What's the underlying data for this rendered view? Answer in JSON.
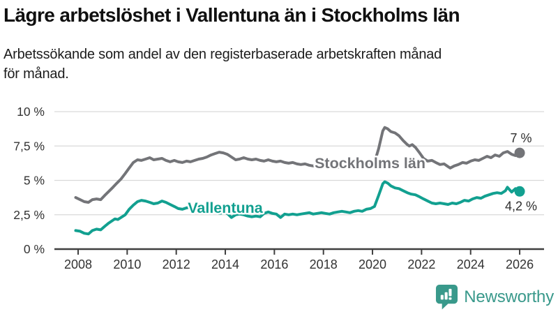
{
  "header": {
    "title": "Lägre arbetslöshet i Vallentuna än i Stockholms län",
    "subtitle_lines": [
      "Arbetssökande som andel av den registerbaserade arbetskraften månad",
      "för månad."
    ]
  },
  "footer": {
    "brand": "Newsworthy",
    "logo_icon": "bar-chart-speech-bubble-icon"
  },
  "colors": {
    "stockholm_line": "#737478",
    "vallentuna_line": "#12a090",
    "grid": "#d9d9d9",
    "axis": "#3f3f3f",
    "tick_text": "#333333",
    "end_label_text": "#2e2e2e",
    "brand_teal": "#39998b",
    "background": "#ffffff"
  },
  "chart_data": {
    "type": "line",
    "title": "Lägre arbetslöshet i Vallentuna än i Stockholms län",
    "xlabel": "",
    "ylabel": "",
    "grid": "horizontal",
    "legend_position": "inline-labels",
    "x_range": [
      2007.85,
      2026.0
    ],
    "ylim": [
      0,
      10
    ],
    "y_ticks": [
      {
        "value": 0,
        "label": "0 %"
      },
      {
        "value": 2.5,
        "label": "2,5 %"
      },
      {
        "value": 5,
        "label": "5 %"
      },
      {
        "value": 7.5,
        "label": "7,5 %"
      },
      {
        "value": 10,
        "label": "10 %"
      }
    ],
    "x_ticks": [
      {
        "value": 2008,
        "label": "2008"
      },
      {
        "value": 2010,
        "label": "2010"
      },
      {
        "value": 2012,
        "label": "2012"
      },
      {
        "value": 2014,
        "label": "2014"
      },
      {
        "value": 2016,
        "label": "2016"
      },
      {
        "value": 2018,
        "label": "2018"
      },
      {
        "value": 2020,
        "label": "2020"
      },
      {
        "value": 2022,
        "label": "2022"
      },
      {
        "value": 2024,
        "label": "2024"
      },
      {
        "value": 2026,
        "label": "2026"
      }
    ],
    "series": [
      {
        "name": "Stockholms län",
        "color": "#737478",
        "end_label": "7 %",
        "end_label_side": "above",
        "name_label_at": {
          "x": 2019.9,
          "y": 6.25
        },
        "points": [
          [
            2007.9,
            3.75
          ],
          [
            2008.08,
            3.6
          ],
          [
            2008.25,
            3.45
          ],
          [
            2008.42,
            3.4
          ],
          [
            2008.58,
            3.6
          ],
          [
            2008.75,
            3.65
          ],
          [
            2008.92,
            3.6
          ],
          [
            2009.08,
            3.9
          ],
          [
            2009.25,
            4.2
          ],
          [
            2009.42,
            4.5
          ],
          [
            2009.58,
            4.8
          ],
          [
            2009.75,
            5.1
          ],
          [
            2009.92,
            5.5
          ],
          [
            2010.08,
            5.9
          ],
          [
            2010.25,
            6.3
          ],
          [
            2010.42,
            6.5
          ],
          [
            2010.58,
            6.45
          ],
          [
            2010.75,
            6.55
          ],
          [
            2010.92,
            6.65
          ],
          [
            2011.08,
            6.5
          ],
          [
            2011.25,
            6.55
          ],
          [
            2011.42,
            6.6
          ],
          [
            2011.58,
            6.45
          ],
          [
            2011.75,
            6.35
          ],
          [
            2011.92,
            6.45
          ],
          [
            2012.08,
            6.35
          ],
          [
            2012.25,
            6.3
          ],
          [
            2012.42,
            6.4
          ],
          [
            2012.58,
            6.35
          ],
          [
            2012.75,
            6.45
          ],
          [
            2012.92,
            6.55
          ],
          [
            2013.08,
            6.6
          ],
          [
            2013.25,
            6.7
          ],
          [
            2013.42,
            6.85
          ],
          [
            2013.58,
            6.95
          ],
          [
            2013.75,
            7.05
          ],
          [
            2013.92,
            7.0
          ],
          [
            2014.08,
            6.9
          ],
          [
            2014.25,
            6.7
          ],
          [
            2014.42,
            6.5
          ],
          [
            2014.58,
            6.55
          ],
          [
            2014.75,
            6.65
          ],
          [
            2014.92,
            6.55
          ],
          [
            2015.08,
            6.5
          ],
          [
            2015.25,
            6.55
          ],
          [
            2015.42,
            6.45
          ],
          [
            2015.58,
            6.4
          ],
          [
            2015.75,
            6.5
          ],
          [
            2015.92,
            6.4
          ],
          [
            2016.08,
            6.35
          ],
          [
            2016.25,
            6.4
          ],
          [
            2016.42,
            6.3
          ],
          [
            2016.58,
            6.25
          ],
          [
            2016.75,
            6.3
          ],
          [
            2016.92,
            6.2
          ],
          [
            2017.08,
            6.15
          ],
          [
            2017.25,
            6.2
          ],
          [
            2017.42,
            6.1
          ],
          [
            2017.58,
            6.05
          ],
          [
            2017.75,
            6.1
          ],
          [
            2017.92,
            6.0
          ],
          [
            2018.08,
            6.05
          ],
          [
            2018.25,
            6.1
          ],
          [
            2018.42,
            6.0
          ],
          [
            2018.58,
            5.95
          ],
          [
            2018.75,
            6.05
          ],
          [
            2018.92,
            6.1
          ],
          [
            2019.08,
            6.0
          ],
          [
            2019.25,
            6.05
          ],
          [
            2019.42,
            6.1
          ],
          [
            2019.58,
            6.05
          ],
          [
            2019.75,
            6.1
          ],
          [
            2019.92,
            6.15
          ],
          [
            2020.08,
            6.3
          ],
          [
            2020.25,
            7.3
          ],
          [
            2020.42,
            8.6
          ],
          [
            2020.5,
            8.85
          ],
          [
            2020.62,
            8.75
          ],
          [
            2020.75,
            8.55
          ],
          [
            2020.92,
            8.45
          ],
          [
            2021.08,
            8.25
          ],
          [
            2021.25,
            7.9
          ],
          [
            2021.42,
            7.6
          ],
          [
            2021.5,
            7.5
          ],
          [
            2021.62,
            7.6
          ],
          [
            2021.75,
            7.4
          ],
          [
            2021.92,
            7.0
          ],
          [
            2022.08,
            6.6
          ],
          [
            2022.25,
            6.4
          ],
          [
            2022.42,
            6.45
          ],
          [
            2022.58,
            6.3
          ],
          [
            2022.75,
            6.15
          ],
          [
            2022.92,
            6.2
          ],
          [
            2023.08,
            6.0
          ],
          [
            2023.17,
            5.9
          ],
          [
            2023.33,
            6.05
          ],
          [
            2023.5,
            6.15
          ],
          [
            2023.67,
            6.3
          ],
          [
            2023.83,
            6.25
          ],
          [
            2024.0,
            6.4
          ],
          [
            2024.17,
            6.5
          ],
          [
            2024.33,
            6.45
          ],
          [
            2024.5,
            6.6
          ],
          [
            2024.67,
            6.75
          ],
          [
            2024.83,
            6.65
          ],
          [
            2025.0,
            6.85
          ],
          [
            2025.17,
            6.75
          ],
          [
            2025.33,
            7.0
          ],
          [
            2025.5,
            7.1
          ],
          [
            2025.67,
            6.9
          ],
          [
            2025.83,
            6.8
          ],
          [
            2026.0,
            7.0
          ]
        ]
      },
      {
        "name": "Vallentuna",
        "color": "#12a090",
        "end_label": "4,2 %",
        "end_label_side": "below",
        "name_label_at": {
          "x": 2014.0,
          "y": 3.0
        },
        "points": [
          [
            2007.9,
            1.35
          ],
          [
            2008.08,
            1.3
          ],
          [
            2008.25,
            1.15
          ],
          [
            2008.42,
            1.1
          ],
          [
            2008.58,
            1.35
          ],
          [
            2008.75,
            1.45
          ],
          [
            2008.92,
            1.4
          ],
          [
            2009.08,
            1.65
          ],
          [
            2009.25,
            1.9
          ],
          [
            2009.42,
            2.1
          ],
          [
            2009.5,
            2.2
          ],
          [
            2009.62,
            2.15
          ],
          [
            2009.75,
            2.3
          ],
          [
            2009.92,
            2.5
          ],
          [
            2010.08,
            2.9
          ],
          [
            2010.25,
            3.2
          ],
          [
            2010.42,
            3.45
          ],
          [
            2010.58,
            3.55
          ],
          [
            2010.75,
            3.5
          ],
          [
            2010.92,
            3.4
          ],
          [
            2011.08,
            3.3
          ],
          [
            2011.25,
            3.35
          ],
          [
            2011.42,
            3.5
          ],
          [
            2011.58,
            3.4
          ],
          [
            2011.75,
            3.25
          ],
          [
            2011.92,
            3.1
          ],
          [
            2012.08,
            2.95
          ],
          [
            2012.25,
            2.9
          ],
          [
            2012.42,
            3.0
          ],
          [
            2012.58,
            3.05
          ],
          [
            2012.75,
            2.9
          ],
          [
            2012.92,
            2.85
          ],
          [
            2013.08,
            2.9
          ],
          [
            2013.25,
            2.75
          ],
          [
            2013.42,
            2.85
          ],
          [
            2013.58,
            2.7
          ],
          [
            2013.75,
            2.6
          ],
          [
            2013.92,
            2.65
          ],
          [
            2014.08,
            2.6
          ],
          [
            2014.25,
            2.3
          ],
          [
            2014.42,
            2.5
          ],
          [
            2014.58,
            2.55
          ],
          [
            2014.75,
            2.5
          ],
          [
            2014.92,
            2.4
          ],
          [
            2015.08,
            2.35
          ],
          [
            2015.25,
            2.4
          ],
          [
            2015.42,
            2.35
          ],
          [
            2015.58,
            2.6
          ],
          [
            2015.75,
            2.7
          ],
          [
            2015.92,
            2.6
          ],
          [
            2016.08,
            2.55
          ],
          [
            2016.25,
            2.3
          ],
          [
            2016.42,
            2.55
          ],
          [
            2016.58,
            2.5
          ],
          [
            2016.75,
            2.55
          ],
          [
            2016.92,
            2.5
          ],
          [
            2017.08,
            2.55
          ],
          [
            2017.25,
            2.6
          ],
          [
            2017.42,
            2.65
          ],
          [
            2017.58,
            2.55
          ],
          [
            2017.75,
            2.6
          ],
          [
            2017.92,
            2.65
          ],
          [
            2018.08,
            2.6
          ],
          [
            2018.25,
            2.55
          ],
          [
            2018.42,
            2.65
          ],
          [
            2018.58,
            2.7
          ],
          [
            2018.75,
            2.75
          ],
          [
            2018.92,
            2.7
          ],
          [
            2019.08,
            2.65
          ],
          [
            2019.25,
            2.75
          ],
          [
            2019.42,
            2.8
          ],
          [
            2019.58,
            2.75
          ],
          [
            2019.75,
            2.9
          ],
          [
            2019.92,
            2.95
          ],
          [
            2020.08,
            3.1
          ],
          [
            2020.25,
            3.9
          ],
          [
            2020.42,
            4.75
          ],
          [
            2020.5,
            4.9
          ],
          [
            2020.62,
            4.8
          ],
          [
            2020.75,
            4.6
          ],
          [
            2020.92,
            4.45
          ],
          [
            2021.08,
            4.4
          ],
          [
            2021.25,
            4.25
          ],
          [
            2021.42,
            4.1
          ],
          [
            2021.58,
            4.0
          ],
          [
            2021.75,
            3.95
          ],
          [
            2021.92,
            3.8
          ],
          [
            2022.08,
            3.65
          ],
          [
            2022.25,
            3.5
          ],
          [
            2022.42,
            3.35
          ],
          [
            2022.58,
            3.3
          ],
          [
            2022.75,
            3.35
          ],
          [
            2022.92,
            3.3
          ],
          [
            2023.08,
            3.25
          ],
          [
            2023.25,
            3.35
          ],
          [
            2023.42,
            3.3
          ],
          [
            2023.58,
            3.4
          ],
          [
            2023.75,
            3.55
          ],
          [
            2023.92,
            3.5
          ],
          [
            2024.08,
            3.65
          ],
          [
            2024.25,
            3.75
          ],
          [
            2024.42,
            3.7
          ],
          [
            2024.58,
            3.85
          ],
          [
            2024.75,
            3.95
          ],
          [
            2024.92,
            4.05
          ],
          [
            2025.08,
            4.1
          ],
          [
            2025.25,
            4.05
          ],
          [
            2025.42,
            4.25
          ],
          [
            2025.5,
            4.5
          ],
          [
            2025.67,
            4.15
          ],
          [
            2025.83,
            4.4
          ],
          [
            2026.0,
            4.2
          ]
        ]
      }
    ]
  }
}
